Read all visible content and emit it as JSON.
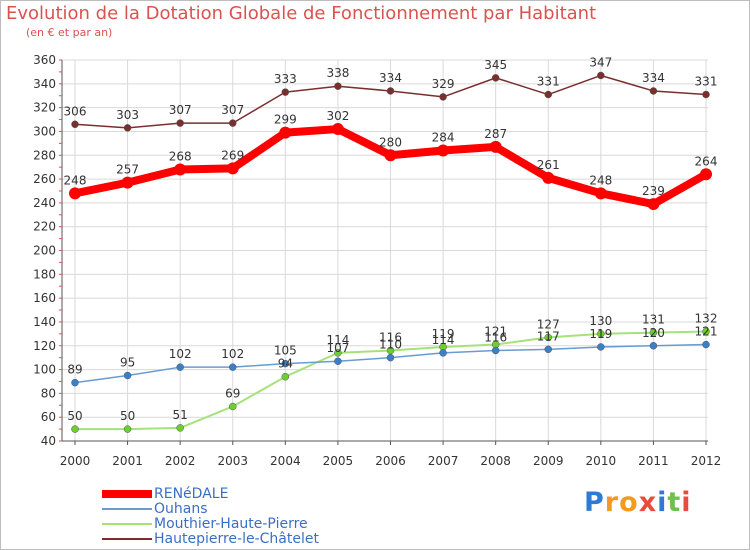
{
  "header": {
    "title": "Evolution de la Dotation Globale de Fonctionnement par Habitant",
    "subtitle": "(en € et par an)"
  },
  "colors": {
    "title": "#d9534f",
    "axis_text": "#333333",
    "grid": "#d9d9d9",
    "legend_text": "#3b6fc4"
  },
  "chart_data": {
    "type": "line",
    "title": "Evolution de la Dotation Globale de Fonctionnement par Habitant",
    "subtitle": "(en € et par an)",
    "xlabel": "",
    "ylabel": "",
    "x": [
      "2000",
      "2001",
      "2002",
      "2003",
      "2004",
      "2005",
      "2006",
      "2007",
      "2008",
      "2009",
      "2010",
      "2011",
      "2012"
    ],
    "ylim": [
      40,
      360
    ],
    "yticks": [
      40,
      60,
      80,
      100,
      120,
      140,
      160,
      180,
      200,
      220,
      240,
      260,
      280,
      300,
      320,
      340,
      360
    ],
    "grid": true,
    "legend_position": "bottom-left",
    "series": [
      {
        "name": "RENéDALE",
        "color": "#ff0000",
        "width": 8,
        "values": [
          248,
          257,
          268,
          269,
          299,
          302,
          280,
          284,
          287,
          261,
          248,
          239,
          264
        ],
        "labels": [
          "248",
          "257",
          "268",
          "269",
          "299",
          "302",
          "280",
          "284",
          "287",
          "261",
          "248",
          "239",
          "264"
        ],
        "label_color": "#333333"
      },
      {
        "name": "Ouhans",
        "color": "#6a9bd0",
        "marker_color": "#3a7fc9",
        "width": 1.5,
        "values": [
          89,
          95,
          102,
          102,
          105,
          107,
          110,
          114,
          116,
          117,
          119,
          120,
          121
        ],
        "labels": [
          "89",
          "95",
          "102",
          "102",
          "105",
          "107",
          "110",
          "114",
          "116",
          "117",
          "119",
          "120",
          "121"
        ],
        "label_color": "#333333"
      },
      {
        "name": "Mouthier-Haute-Pierre",
        "color": "#a6e27a",
        "marker_color": "#6ccf2e",
        "width": 2,
        "values": [
          50,
          50,
          51,
          69,
          94,
          114,
          116,
          119,
          121,
          127,
          130,
          131,
          132
        ],
        "labels": [
          "50",
          "50",
          "51",
          "69",
          "94",
          "114",
          "116",
          "119",
          "121",
          "127",
          "130",
          "131",
          "132"
        ],
        "label_color": "#333333"
      },
      {
        "name": "Hautepierre-le-Châtelet",
        "color": "#7a2f2f",
        "marker_color": "#7a2f2f",
        "width": 1.5,
        "values": [
          306,
          303,
          307,
          307,
          333,
          338,
          334,
          329,
          345,
          331,
          347,
          334,
          331
        ],
        "labels": [
          "306",
          "303",
          "307",
          "307",
          "333",
          "338",
          "334",
          "329",
          "345",
          "331",
          "347",
          "334",
          "331"
        ],
        "label_color": "#333333"
      }
    ]
  },
  "legend": {
    "items": [
      {
        "label": "RENéDALE",
        "color": "#ff0000",
        "thick": true
      },
      {
        "label": "Ouhans",
        "color": "#6a9bd0",
        "thick": false
      },
      {
        "label": "Mouthier-Haute-Pierre",
        "color": "#a6e27a",
        "thick": false
      },
      {
        "label": "Hautepierre-le-Châtelet",
        "color": "#7a2f2f",
        "thick": false
      }
    ]
  },
  "logo": {
    "text": "Proxiti",
    "letter_colors": [
      "#2f7bd4",
      "#f29b20",
      "#f29b20",
      "#e84c3d",
      "#2f7bd4",
      "#6cc24a",
      "#e84c3d"
    ]
  }
}
